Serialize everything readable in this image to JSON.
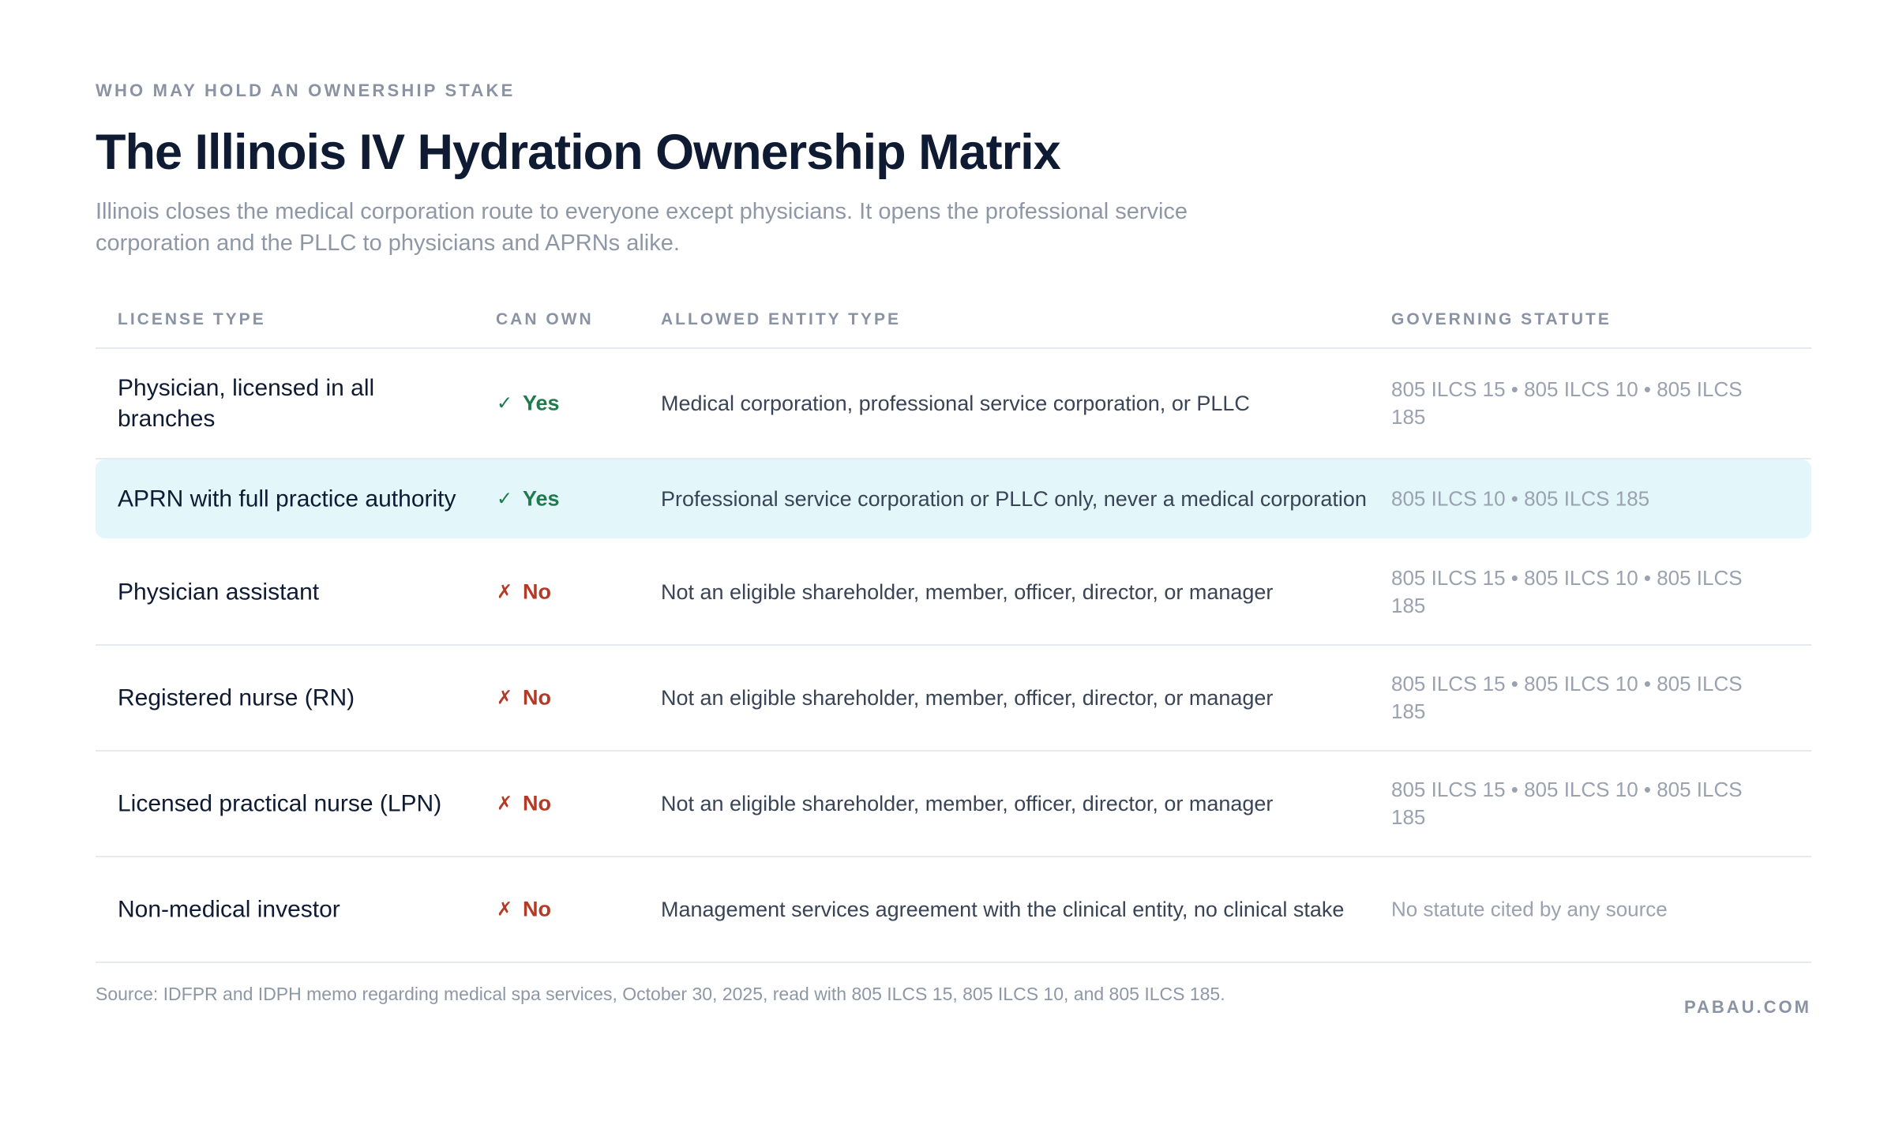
{
  "header": {
    "eyebrow": "WHO MAY HOLD AN OWNERSHIP STAKE",
    "title": "The Illinois IV Hydration Ownership Matrix",
    "subtitle": "Illinois closes the medical corporation route to everyone except physicians. It opens the professional service corporation and the PLLC to physicians and APRNs alike."
  },
  "table": {
    "columns": {
      "license": "LICENSE TYPE",
      "can_own": "CAN OWN",
      "entity": "ALLOWED ENTITY TYPE",
      "statute": "GOVERNING STATUTE"
    },
    "rows": [
      {
        "license": "Physician, licensed in all branches",
        "can_own": "Yes",
        "can_own_mark": "✓",
        "entity": "Medical corporation, professional service corporation, or PLLC",
        "statute": "805 ILCS 15 • 805 ILCS 10 • 805 ILCS 185"
      },
      {
        "license": "APRN with full practice authority",
        "can_own": "Yes",
        "can_own_mark": "✓",
        "entity": "Professional service corporation or PLLC only, never a medical corporation",
        "statute": "805 ILCS 10 • 805 ILCS 185"
      },
      {
        "license": "Physician assistant",
        "can_own": "No",
        "can_own_mark": "✗",
        "entity": "Not an eligible shareholder, member, officer, director, or manager",
        "statute": "805 ILCS 15 • 805 ILCS 10 • 805 ILCS 185"
      },
      {
        "license": "Registered nurse (RN)",
        "can_own": "No",
        "can_own_mark": "✗",
        "entity": "Not an eligible shareholder, member, officer, director, or manager",
        "statute": "805 ILCS 15 • 805 ILCS 10 • 805 ILCS 185"
      },
      {
        "license": "Licensed practical nurse (LPN)",
        "can_own": "No",
        "can_own_mark": "✗",
        "entity": "Not an eligible shareholder, member, officer, director, or manager",
        "statute": "805 ILCS 15 • 805 ILCS 10 • 805 ILCS 185"
      },
      {
        "license": "Non-medical investor",
        "can_own": "No",
        "can_own_mark": "✗",
        "entity": "Management services agreement with the clinical entity, no clinical stake",
        "statute": "No statute cited by any source"
      }
    ]
  },
  "footer": {
    "source": "Source: IDFPR and IDPH memo regarding medical spa services, October 30, 2025, read with 805 ILCS 15, 805 ILCS 10, and 805 ILCS 185.",
    "brand": "PABAU.COM"
  },
  "colors": {
    "yes": "#1f7a4c",
    "no": "#b23a27",
    "highlight_row": "#e3f6fa"
  }
}
